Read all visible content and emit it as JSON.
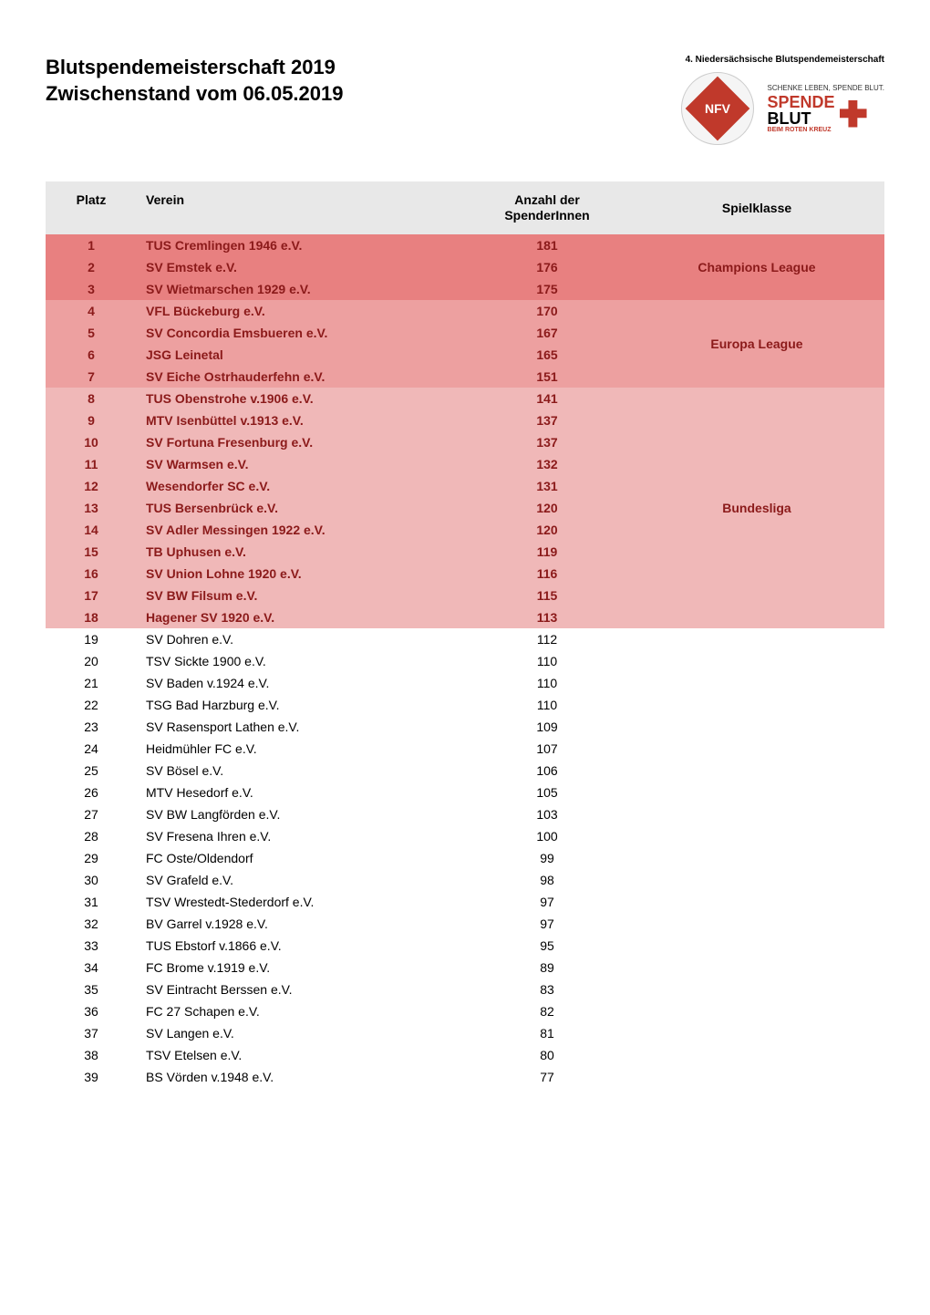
{
  "header": {
    "title_line1": "Blutspendemeisterschaft 2019",
    "title_line2": "Zwischenstand vom 06.05.2019",
    "logo_subtitle": "4. Niedersächsische Blutspendemeisterschaft",
    "nfv_text": "NFV",
    "spende_small": "SCHENKE LEBEN, SPENDE BLUT.",
    "spende_line1": "SPENDE",
    "spende_line2": "BLUT",
    "spende_sub": "BEIM ROTEN KREUZ"
  },
  "table": {
    "headers": {
      "platz": "Platz",
      "verein": "Verein",
      "anzahl_line1": "Anzahl der",
      "anzahl_line2": "SpenderInnen",
      "spielklasse": "Spielklasse"
    },
    "tiers": [
      {
        "name": "Champions League",
        "css_class": "tier-champions",
        "background": "#e88080",
        "text_color": "#8b1a1a",
        "rows": [
          {
            "platz": "1",
            "verein": "TUS Cremlingen 1946 e.V.",
            "anzahl": "181"
          },
          {
            "platz": "2",
            "verein": "SV Emstek e.V.",
            "anzahl": "176"
          },
          {
            "platz": "3",
            "verein": "SV Wietmarschen 1929 e.V.",
            "anzahl": "175"
          }
        ]
      },
      {
        "name": "Europa League",
        "css_class": "tier-europa",
        "background": "#eda0a0",
        "text_color": "#8b1a1a",
        "rows": [
          {
            "platz": "4",
            "verein": "VFL Bückeburg e.V.",
            "anzahl": "170"
          },
          {
            "platz": "5",
            "verein": "SV Concordia Emsbueren e.V.",
            "anzahl": "167"
          },
          {
            "platz": "6",
            "verein": "JSG Leinetal",
            "anzahl": "165"
          },
          {
            "platz": "7",
            "verein": "SV Eiche Ostrhauderfehn e.V.",
            "anzahl": "151"
          }
        ]
      },
      {
        "name": "Bundesliga",
        "css_class": "tier-bundesliga",
        "background": "#f0b8b8",
        "text_color": "#8b1a1a",
        "rows": [
          {
            "platz": "8",
            "verein": "TUS Obenstrohe v.1906 e.V.",
            "anzahl": "141"
          },
          {
            "platz": "9",
            "verein": "MTV Isenbüttel v.1913 e.V.",
            "anzahl": "137"
          },
          {
            "platz": "10",
            "verein": "SV Fortuna Fresenburg e.V.",
            "anzahl": "137"
          },
          {
            "platz": "11",
            "verein": "SV Warmsen e.V.",
            "anzahl": "132"
          },
          {
            "platz": "12",
            "verein": "Wesendorfer SC e.V.",
            "anzahl": "131"
          },
          {
            "platz": "13",
            "verein": "TUS Bersenbrück e.V.",
            "anzahl": "120"
          },
          {
            "platz": "14",
            "verein": "SV Adler Messingen 1922 e.V.",
            "anzahl": "120"
          },
          {
            "platz": "15",
            "verein": "TB Uphusen e.V.",
            "anzahl": "119"
          },
          {
            "platz": "16",
            "verein": "SV Union Lohne 1920 e.V.",
            "anzahl": "116"
          },
          {
            "platz": "17",
            "verein": "SV BW Filsum e.V.",
            "anzahl": "115"
          },
          {
            "platz": "18",
            "verein": "Hagener SV 1920 e.V.",
            "anzahl": "113"
          }
        ]
      },
      {
        "name": "",
        "css_class": "tier-none",
        "background": "#ffffff",
        "text_color": "#000000",
        "rows": [
          {
            "platz": "19",
            "verein": "SV Dohren e.V.",
            "anzahl": "112"
          },
          {
            "platz": "20",
            "verein": "TSV Sickte 1900 e.V.",
            "anzahl": "110"
          },
          {
            "platz": "21",
            "verein": "SV Baden v.1924 e.V.",
            "anzahl": "110"
          },
          {
            "platz": "22",
            "verein": "TSG Bad Harzburg e.V.",
            "anzahl": "110"
          },
          {
            "platz": "23",
            "verein": "SV Rasensport Lathen e.V.",
            "anzahl": "109"
          },
          {
            "platz": "24",
            "verein": "Heidmühler FC e.V.",
            "anzahl": "107"
          },
          {
            "platz": "25",
            "verein": "SV Bösel e.V.",
            "anzahl": "106"
          },
          {
            "platz": "26",
            "verein": "MTV Hesedorf e.V.",
            "anzahl": "105"
          },
          {
            "platz": "27",
            "verein": "SV BW Langförden e.V.",
            "anzahl": "103"
          },
          {
            "platz": "28",
            "verein": "SV Fresena Ihren e.V.",
            "anzahl": "100"
          },
          {
            "platz": "29",
            "verein": "FC Oste/Oldendorf",
            "anzahl": "99"
          },
          {
            "platz": "30",
            "verein": "SV Grafeld e.V.",
            "anzahl": "98"
          },
          {
            "platz": "31",
            "verein": "TSV Wrestedt-Stederdorf e.V.",
            "anzahl": "97"
          },
          {
            "platz": "32",
            "verein": "BV Garrel v.1928 e.V.",
            "anzahl": "97"
          },
          {
            "platz": "33",
            "verein": "TUS Ebstorf v.1866 e.V.",
            "anzahl": "95"
          },
          {
            "platz": "34",
            "verein": "FC Brome v.1919 e.V.",
            "anzahl": "89"
          },
          {
            "platz": "35",
            "verein": "SV Eintracht Berssen e.V.",
            "anzahl": "83"
          },
          {
            "platz": "36",
            "verein": "FC 27 Schapen e.V.",
            "anzahl": "82"
          },
          {
            "platz": "37",
            "verein": "SV Langen e.V.",
            "anzahl": "81"
          },
          {
            "platz": "38",
            "verein": "TSV Etelsen e.V.",
            "anzahl": "80"
          },
          {
            "platz": "39",
            "verein": "BS Vörden v.1948 e.V.",
            "anzahl": "77"
          }
        ]
      }
    ]
  }
}
